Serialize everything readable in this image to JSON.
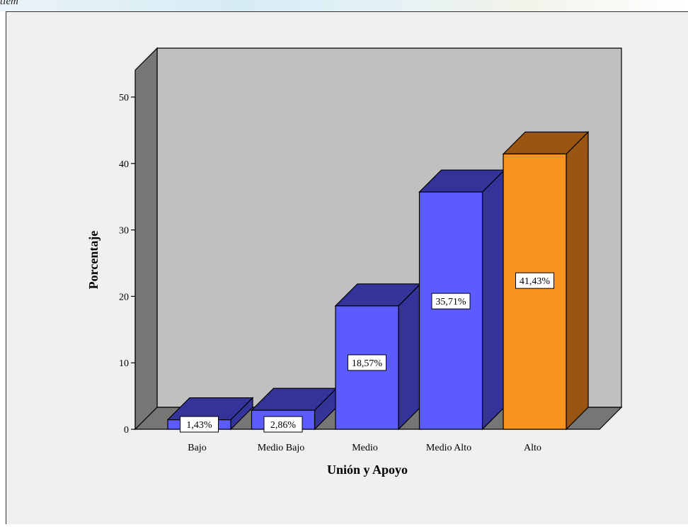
{
  "caption": "tiem",
  "chart_data": {
    "type": "bar",
    "categories": [
      "Bajo",
      "Medio Bajo",
      "Medio",
      "Medio Alto",
      "Alto"
    ],
    "values": [
      1.43,
      2.86,
      18.57,
      35.71,
      41.43
    ],
    "labels": [
      "1,43%",
      "2,86%",
      "18,57%",
      "35,71%",
      "41,43%"
    ],
    "xlabel": "Unión y Apoyo",
    "ylabel": "Porcentaje",
    "ylim": [
      0,
      50
    ],
    "yticks": [
      "0",
      "10",
      "20",
      "30",
      "40",
      "50"
    ],
    "grid": false,
    "colors": {
      "bar_front": "#5b5bff",
      "bar_side": "#333399",
      "bar_highlight_front": "#f7941d",
      "bar_highlight_side": "#995511",
      "wall_back": "#c0c0c0",
      "wall_left": "#767676",
      "floor": "#767676"
    },
    "highlight_index": 4
  }
}
